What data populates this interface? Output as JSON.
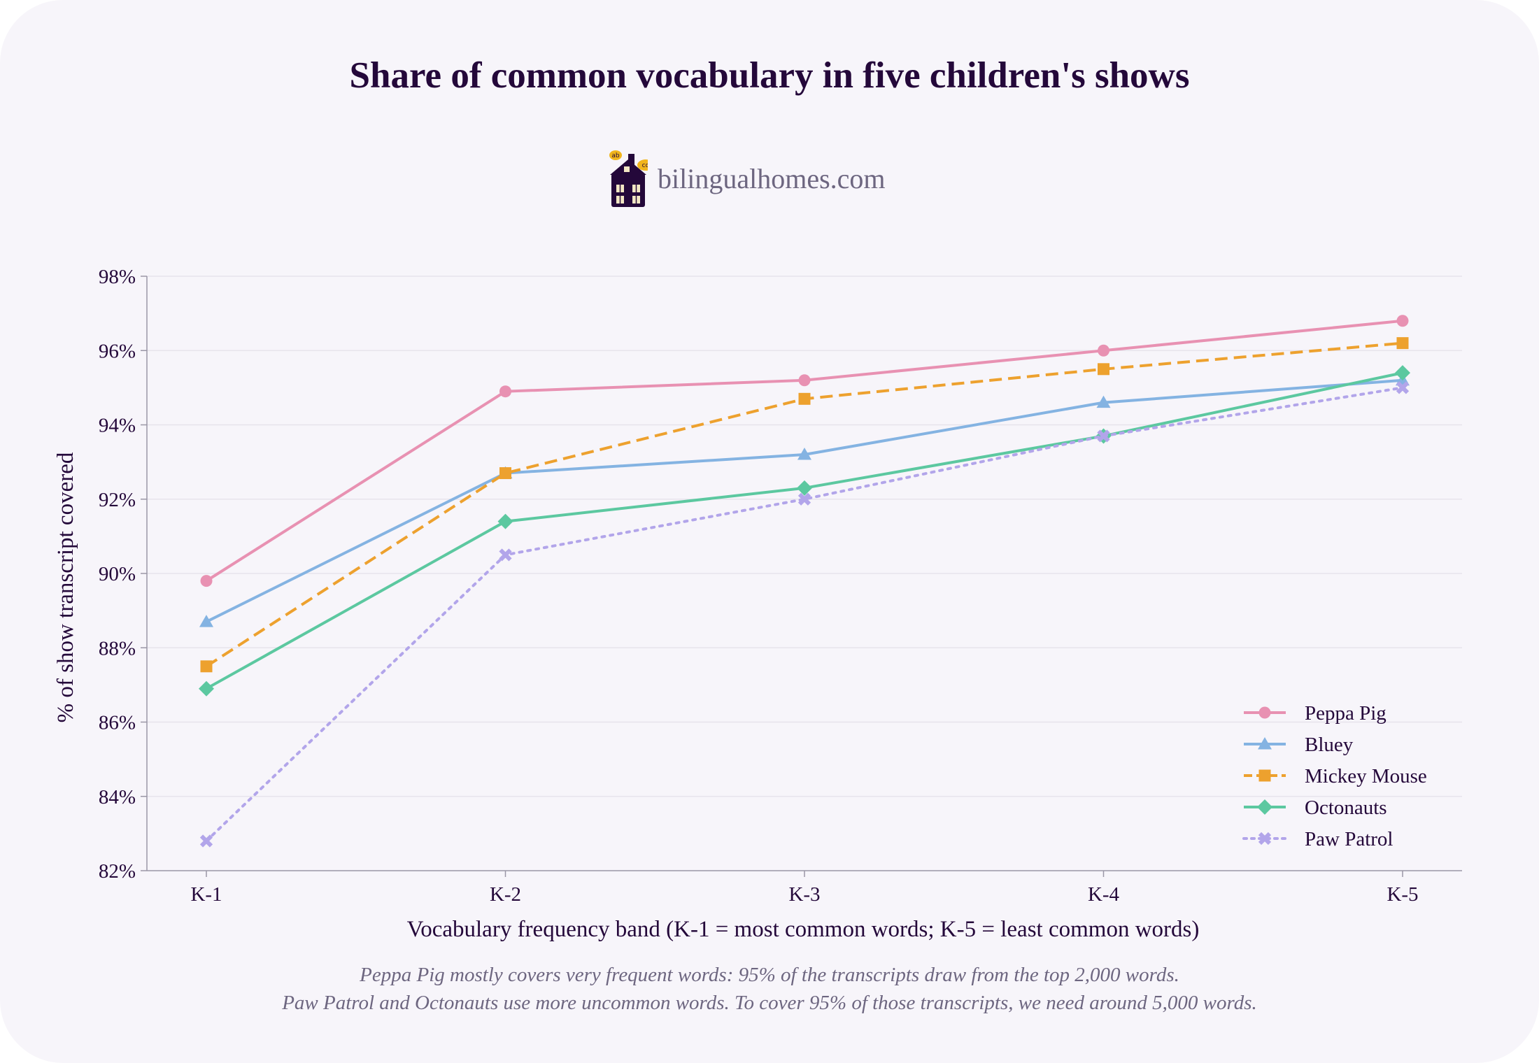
{
  "colors": {
    "background": "#f7f5fa",
    "text": "#24083a",
    "muted": "#6d6680",
    "grid": "#e7e4ec",
    "axis": "#9a96a6"
  },
  "brand": {
    "name": "bilingualhomes.com",
    "icon": "house-icon"
  },
  "notes": [
    "Peppa Pig mostly covers very frequent words: 95% of the transcripts draw from the top 2,000 words.",
    "Paw Patrol and Octonauts use more uncommon words. To cover 95% of those transcripts, we need around 5,000 words."
  ],
  "chart_data": {
    "type": "line",
    "title": "Share of common vocabulary in five children's shows",
    "xlabel": "Vocabulary frequency band (K-1 = most common words; K-5 = least common words)",
    "ylabel": "% of show transcript covered",
    "categories": [
      "K-1",
      "K-2",
      "K-3",
      "K-4",
      "K-5"
    ],
    "ylim": [
      82,
      98
    ],
    "yticks": [
      82,
      84,
      86,
      88,
      90,
      92,
      94,
      96,
      98
    ],
    "ytick_labels": [
      "82%",
      "84%",
      "86%",
      "88%",
      "90%",
      "92%",
      "94%",
      "96%",
      "98%"
    ],
    "grid": "horizontal",
    "legend_position": "lower-right",
    "series": [
      {
        "name": "Peppa Pig",
        "values": [
          89.8,
          94.9,
          95.2,
          96.0,
          96.8
        ],
        "color": "#e891b2",
        "marker": "circle",
        "line": "solid"
      },
      {
        "name": "Bluey",
        "values": [
          88.7,
          92.7,
          93.2,
          94.6,
          95.2
        ],
        "color": "#84b3e2",
        "marker": "triangle",
        "line": "solid"
      },
      {
        "name": "Mickey Mouse",
        "values": [
          87.5,
          92.7,
          94.7,
          95.5,
          96.2
        ],
        "color": "#eda12e",
        "marker": "square",
        "line": "dashed"
      },
      {
        "name": "Octonauts",
        "values": [
          86.9,
          91.4,
          92.3,
          93.7,
          95.4
        ],
        "color": "#5cc8a0",
        "marker": "diamond",
        "line": "solid"
      },
      {
        "name": "Paw Patrol",
        "values": [
          82.8,
          90.5,
          92.0,
          93.7,
          95.0
        ],
        "color": "#b2a5ea",
        "marker": "x",
        "line": "dotted"
      }
    ]
  }
}
